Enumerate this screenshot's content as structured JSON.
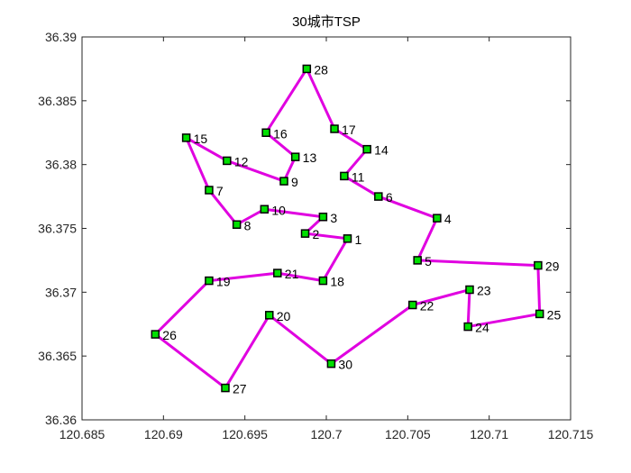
{
  "chart_data": {
    "type": "line",
    "title": "30城市TSP",
    "xlabel": "",
    "ylabel": "",
    "xlim": [
      120.685,
      120.715
    ],
    "ylim": [
      36.36,
      36.39
    ],
    "xticks": [
      120.685,
      120.69,
      120.695,
      120.7,
      120.705,
      120.71,
      120.715
    ],
    "xtick_labels": [
      "120.685",
      "120.69",
      "120.695",
      "120.7",
      "120.705",
      "120.71",
      "120.715"
    ],
    "yticks": [
      36.36,
      36.365,
      36.37,
      36.375,
      36.38,
      36.385,
      36.39
    ],
    "ytick_labels": [
      "36.36",
      "36.365",
      "36.37",
      "36.375",
      "36.38",
      "36.385",
      "36.39"
    ],
    "grid": false,
    "route_color": "#e000e0",
    "marker_fill": "#00e000",
    "marker_edge": "#000000",
    "cities": [
      {
        "id": "1",
        "x": 120.7013,
        "y": 36.3742
      },
      {
        "id": "2",
        "x": 120.6987,
        "y": 36.3746
      },
      {
        "id": "3",
        "x": 120.6998,
        "y": 36.3759
      },
      {
        "id": "4",
        "x": 120.7068,
        "y": 36.3758
      },
      {
        "id": "5",
        "x": 120.7056,
        "y": 36.3725
      },
      {
        "id": "6",
        "x": 120.7032,
        "y": 36.3775
      },
      {
        "id": "7",
        "x": 120.6928,
        "y": 36.378
      },
      {
        "id": "8",
        "x": 120.6945,
        "y": 36.3753
      },
      {
        "id": "9",
        "x": 120.6974,
        "y": 36.3787
      },
      {
        "id": "10",
        "x": 120.6962,
        "y": 36.3765
      },
      {
        "id": "11",
        "x": 120.7011,
        "y": 36.3791
      },
      {
        "id": "12",
        "x": 120.6939,
        "y": 36.3803
      },
      {
        "id": "13",
        "x": 120.6981,
        "y": 36.3806
      },
      {
        "id": "14",
        "x": 120.7025,
        "y": 36.3812
      },
      {
        "id": "15",
        "x": 120.6914,
        "y": 36.3821
      },
      {
        "id": "16",
        "x": 120.6963,
        "y": 36.3825
      },
      {
        "id": "17",
        "x": 120.7005,
        "y": 36.3828
      },
      {
        "id": "18",
        "x": 120.6998,
        "y": 36.3709
      },
      {
        "id": "19",
        "x": 120.6928,
        "y": 36.3709
      },
      {
        "id": "20",
        "x": 120.6965,
        "y": 36.3682
      },
      {
        "id": "21",
        "x": 120.697,
        "y": 36.3715
      },
      {
        "id": "22",
        "x": 120.7053,
        "y": 36.369
      },
      {
        "id": "23",
        "x": 120.7088,
        "y": 36.3702
      },
      {
        "id": "24",
        "x": 120.7087,
        "y": 36.3673
      },
      {
        "id": "25",
        "x": 120.7131,
        "y": 36.3683
      },
      {
        "id": "26",
        "x": 120.6895,
        "y": 36.3667
      },
      {
        "id": "27",
        "x": 120.6938,
        "y": 36.3625
      },
      {
        "id": "28",
        "x": 120.6988,
        "y": 36.3875
      },
      {
        "id": "29",
        "x": 120.713,
        "y": 36.3721
      },
      {
        "id": "30",
        "x": 120.7003,
        "y": 36.3644
      }
    ],
    "route": [
      "1",
      "2",
      "3",
      "10",
      "8",
      "7",
      "15",
      "12",
      "9",
      "13",
      "16",
      "28",
      "17",
      "14",
      "11",
      "6",
      "4",
      "5",
      "29",
      "25",
      "24",
      "23",
      "22",
      "30",
      "20",
      "27",
      "26",
      "19",
      "21",
      "18",
      "1"
    ]
  }
}
